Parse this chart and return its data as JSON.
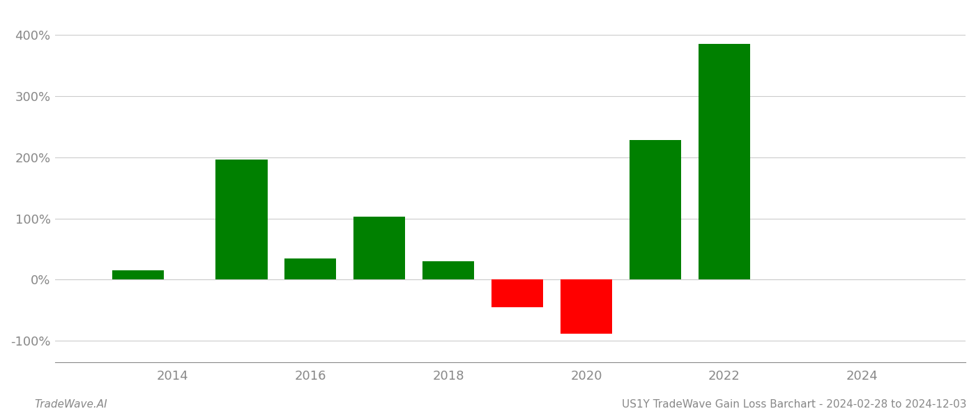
{
  "years": [
    2013.5,
    2015.0,
    2016.0,
    2017.0,
    2018.0,
    2019.0,
    2020.0,
    2021.0,
    2022.0
  ],
  "values": [
    15,
    196,
    35,
    103,
    30,
    -45,
    -88,
    228,
    385
  ],
  "bar_colors": [
    "#008000",
    "#008000",
    "#008000",
    "#008000",
    "#008000",
    "#ff0000",
    "#ff0000",
    "#008000",
    "#008000"
  ],
  "title": "US1Y TradeWave Gain Loss Barchart - 2024-02-28 to 2024-12-03",
  "watermark": "TradeWave.AI",
  "ytick_values": [
    -100,
    0,
    100,
    200,
    300,
    400
  ],
  "ylim": [
    -135,
    440
  ],
  "xlim": [
    2012.3,
    2025.5
  ],
  "xticks": [
    2014,
    2016,
    2018,
    2020,
    2022,
    2024
  ],
  "green_color": "#008000",
  "red_color": "#ff0000",
  "grid_color": "#cccccc",
  "bg_color": "#ffffff",
  "text_color": "#888888",
  "bar_width": 0.75
}
